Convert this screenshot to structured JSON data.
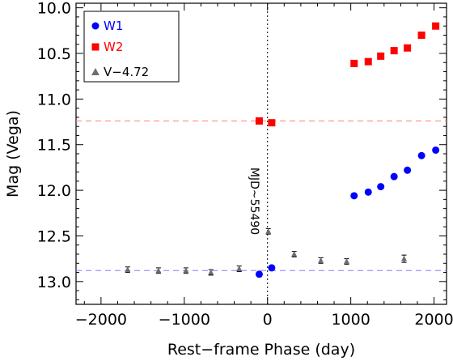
{
  "chart_data": {
    "type": "scatter",
    "xlabel": "Rest−frame Phase (day)",
    "ylabel": "Mag  (Vega)",
    "xlim": [
      -2300,
      2150
    ],
    "ylim": [
      13.25,
      9.95
    ],
    "y_inverted": true,
    "x_ticks": [
      -2000,
      -1000,
      0,
      1000,
      2000
    ],
    "x_tick_labels": [
      "−2000",
      "−1000",
      "0",
      "1000",
      "2000"
    ],
    "y_ticks": [
      10.0,
      10.5,
      11.0,
      11.5,
      12.0,
      12.5,
      13.0
    ],
    "y_tick_labels": [
      "10.0",
      "10.5",
      "11.0",
      "11.5",
      "12.0",
      "12.5",
      "13.0"
    ],
    "legend_position": "top-left",
    "series": [
      {
        "name": "W1",
        "marker": "circle",
        "color": "#0000ff",
        "points": [
          {
            "x": -100,
            "y": 12.92
          },
          {
            "x": 50,
            "y": 12.85
          },
          {
            "x": 1040,
            "y": 12.06
          },
          {
            "x": 1210,
            "y": 12.02
          },
          {
            "x": 1360,
            "y": 11.96
          },
          {
            "x": 1520,
            "y": 11.85
          },
          {
            "x": 1680,
            "y": 11.78
          },
          {
            "x": 1850,
            "y": 11.62
          },
          {
            "x": 2020,
            "y": 11.56
          }
        ]
      },
      {
        "name": "W2",
        "marker": "square",
        "color": "#ff0000",
        "points": [
          {
            "x": -100,
            "y": 11.24
          },
          {
            "x": 50,
            "y": 11.26
          },
          {
            "x": 1040,
            "y": 10.61
          },
          {
            "x": 1210,
            "y": 10.59
          },
          {
            "x": 1360,
            "y": 10.53
          },
          {
            "x": 1520,
            "y": 10.47
          },
          {
            "x": 1680,
            "y": 10.44
          },
          {
            "x": 1850,
            "y": 10.3
          },
          {
            "x": 2020,
            "y": 10.2
          }
        ]
      },
      {
        "name": "V−4.72",
        "marker": "triangle",
        "color": "#6e6e6e",
        "points": [
          {
            "x": -1680,
            "y": 12.87,
            "err": 0.03
          },
          {
            "x": -1310,
            "y": 12.88,
            "err": 0.03
          },
          {
            "x": -980,
            "y": 12.88,
            "err": 0.03
          },
          {
            "x": -680,
            "y": 12.9,
            "err": 0.03
          },
          {
            "x": -340,
            "y": 12.86,
            "err": 0.03
          },
          {
            "x": 10,
            "y": 12.45,
            "err": 0.03
          },
          {
            "x": 320,
            "y": 12.7,
            "err": 0.03
          },
          {
            "x": 640,
            "y": 12.77,
            "err": 0.03
          },
          {
            "x": 950,
            "y": 12.78,
            "err": 0.03
          },
          {
            "x": 1640,
            "y": 12.75,
            "err": 0.04
          }
        ]
      }
    ],
    "reference_lines": [
      {
        "orientation": "horizontal",
        "value": 11.24,
        "color": "#ff8070",
        "style": "dashed"
      },
      {
        "orientation": "horizontal",
        "value": 12.88,
        "color": "#8080ff",
        "style": "dashed"
      },
      {
        "orientation": "vertical",
        "value": 0,
        "color": "#000000",
        "style": "dotted"
      }
    ],
    "annotations": [
      {
        "text": "MJD~55490",
        "at_x": -200,
        "at_y": 11.75,
        "rotation": "vertical"
      }
    ]
  }
}
